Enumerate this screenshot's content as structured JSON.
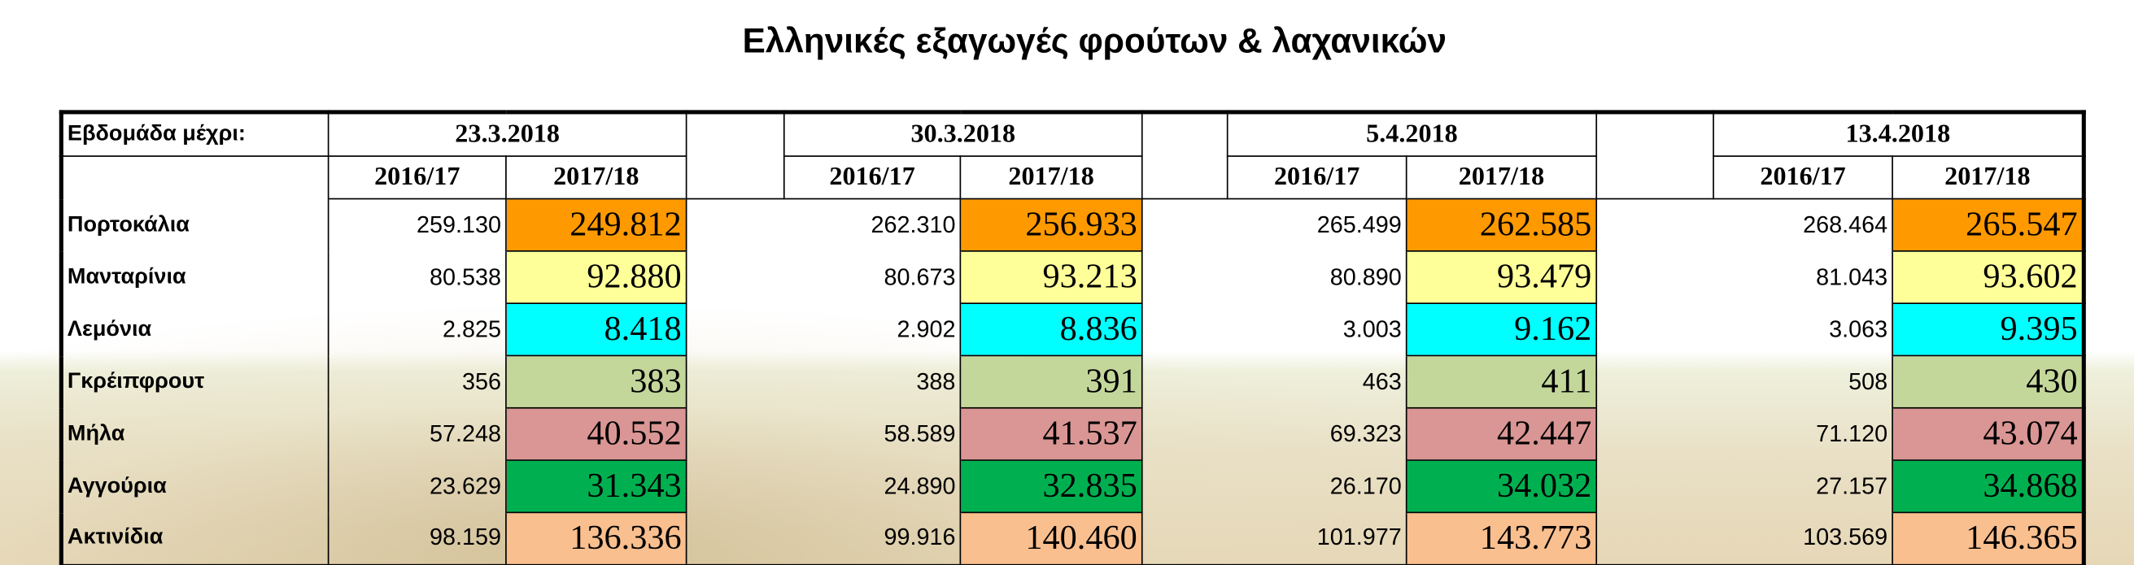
{
  "header": {
    "title": "Ελληνικές εξαγωγές φρούτων & λαχανικών"
  },
  "table": {
    "week_label": "Εβδομάδα μέχρι:",
    "groups": [
      {
        "date": "23.3.2018",
        "seasons": [
          "2016/17",
          "2017/18"
        ]
      },
      {
        "date": "30.3.2018",
        "seasons": [
          "2016/17",
          "2017/18"
        ]
      },
      {
        "date": "5.4.2018",
        "seasons": [
          "2016/17",
          "2017/18"
        ]
      },
      {
        "date": "13.4.2018",
        "seasons": [
          "2016/17",
          "2017/18"
        ]
      }
    ],
    "rows": [
      {
        "label": "Πορτοκάλια",
        "color": "#ff9900",
        "values": [
          "259.130",
          "249.812",
          "262.310",
          "256.933",
          "265.499",
          "262.585",
          "268.464",
          "265.547"
        ]
      },
      {
        "label": "Μανταρίνια",
        "color": "#ffff99",
        "values": [
          "80.538",
          "92.880",
          "80.673",
          "93.213",
          "80.890",
          "93.479",
          "81.043",
          "93.602"
        ]
      },
      {
        "label": "Λεμόνια",
        "color": "#00ffff",
        "values": [
          "2.825",
          "8.418",
          "2.902",
          "8.836",
          "3.003",
          "9.162",
          "3.063",
          "9.395"
        ]
      },
      {
        "label": "Γκρέιπφρουτ",
        "color": "#c4d79b",
        "values": [
          "356",
          "383",
          "388",
          "391",
          "463",
          "411",
          "508",
          "430"
        ]
      },
      {
        "label": "Μήλα",
        "color": "#da9694",
        "values": [
          "57.248",
          "40.552",
          "58.589",
          "41.537",
          "69.323",
          "42.447",
          "71.120",
          "43.074"
        ]
      },
      {
        "label": "Αγγούρια",
        "color": "#00b050",
        "values": [
          "23.629",
          "31.343",
          "24.890",
          "32.835",
          "26.170",
          "34.032",
          "27.157",
          "34.868"
        ]
      },
      {
        "label": "Ακτινίδια",
        "color": "#fabf8f",
        "values": [
          "98.159",
          "136.336",
          "99.916",
          "140.460",
          "101.977",
          "143.773",
          "103.569",
          "146.365"
        ]
      }
    ]
  }
}
